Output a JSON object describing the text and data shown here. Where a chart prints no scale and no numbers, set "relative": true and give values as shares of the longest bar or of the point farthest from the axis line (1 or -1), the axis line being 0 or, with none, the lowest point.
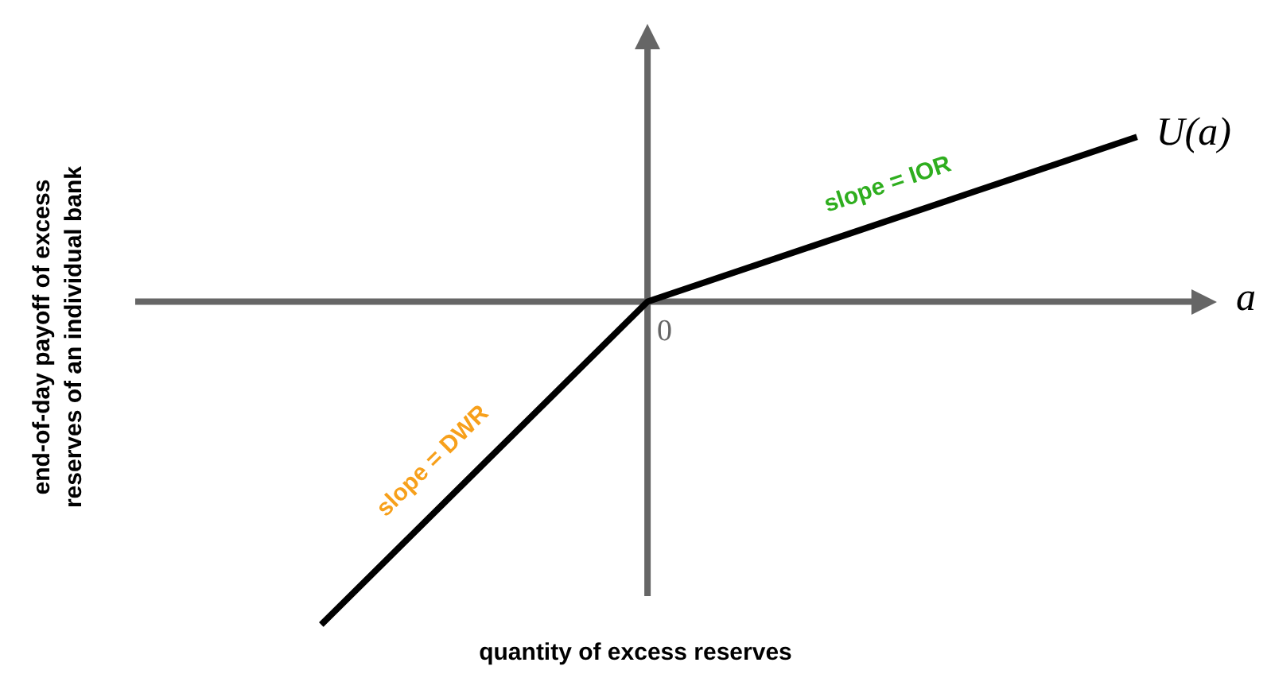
{
  "chart_data": {
    "type": "line",
    "relative": true,
    "xlabel": "quantity of excess reserves",
    "ylabel": "end-of-day payoff of excess reserves of an individual bank",
    "categories": [
      null,
      null,
      null,
      null,
      null,
      null
    ],
    "series": [
      {
        "name": "U(a)",
        "color": "#000000",
        "values": [
          -1,
          -0.5,
          0,
          0.17,
          0.34,
          0.51
        ]
      }
    ],
    "annotations": [
      "0",
      "slope = IOR",
      "slope = DWR",
      "a"
    ],
    "marker": "none",
    "line_style": "solid",
    "legend": false
  }
}
